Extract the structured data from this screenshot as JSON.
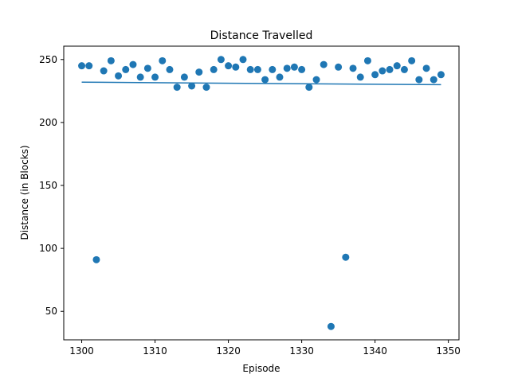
{
  "chart_data": {
    "type": "scatter",
    "title": "Distance Travelled",
    "xlabel": "Episode",
    "ylabel": "Distance (in Blocks)",
    "xlim": [
      1297.55,
      1351.45
    ],
    "ylim": [
      27.4,
      260.6
    ],
    "xticks": [
      1300,
      1310,
      1320,
      1330,
      1340,
      1350
    ],
    "yticks": [
      50,
      100,
      150,
      200,
      250
    ],
    "grid": false,
    "point_color": "#1f77b4",
    "line_color": "#1f77b4",
    "series": [
      {
        "x": [
          1300,
          1301,
          1302,
          1303,
          1304,
          1305,
          1306,
          1307,
          1308,
          1309,
          1310,
          1311,
          1312,
          1313,
          1314,
          1315,
          1316,
          1317,
          1318,
          1319,
          1320,
          1321,
          1322,
          1323,
          1324,
          1325,
          1326,
          1327,
          1328,
          1329,
          1330,
          1331,
          1332,
          1333,
          1334,
          1335,
          1336,
          1337,
          1338,
          1339,
          1340,
          1341,
          1342,
          1343,
          1344,
          1345,
          1346,
          1347,
          1348,
          1349
        ],
        "y": [
          245,
          245,
          91,
          241,
          249,
          237,
          242,
          246,
          236,
          243,
          236,
          249,
          242,
          228,
          236,
          229,
          240,
          228,
          242,
          250,
          245,
          244,
          250,
          242,
          242,
          234,
          242,
          236,
          243,
          244,
          242,
          228,
          234,
          246,
          38,
          244,
          93,
          243,
          236,
          249,
          238,
          241,
          242,
          245,
          242,
          249,
          234,
          243,
          234,
          238
        ]
      }
    ],
    "trend_line": {
      "x": [
        1300,
        1349
      ],
      "y": [
        232,
        230
      ]
    }
  }
}
